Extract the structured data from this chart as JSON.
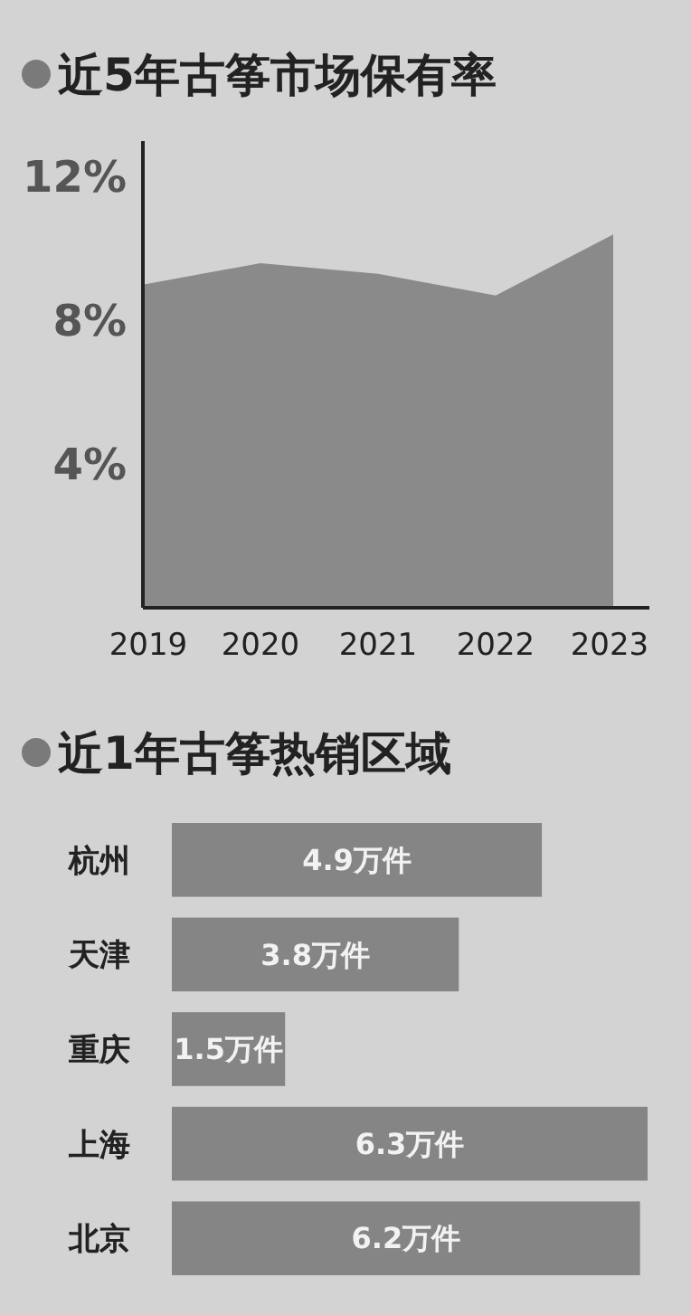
{
  "chart_data": [
    {
      "type": "area",
      "title": "近5年古筝市场保有率",
      "categories": [
        "2019",
        "2020",
        "2021",
        "2022",
        "2023"
      ],
      "values": [
        9.0,
        9.6,
        9.3,
        8.7,
        10.4
      ],
      "color": "#8a8a8a",
      "ylim": [
        0,
        13
      ],
      "yticks": [
        {
          "value": 4,
          "label": "4%"
        },
        {
          "value": 8,
          "label": "8%"
        },
        {
          "value": 12,
          "label": "12%"
        }
      ]
    },
    {
      "type": "bar",
      "orientation": "horizontal",
      "title": "近1年古筝热销区域",
      "categories": [
        "杭州",
        "天津",
        "重庆",
        "上海",
        "北京"
      ],
      "values": [
        4.9,
        3.8,
        1.5,
        6.3,
        6.2
      ],
      "value_labels": [
        "4.9万件",
        "3.8万件",
        "1.5万件",
        "6.3万件",
        "6.2万件"
      ],
      "color": "#858585"
    }
  ]
}
